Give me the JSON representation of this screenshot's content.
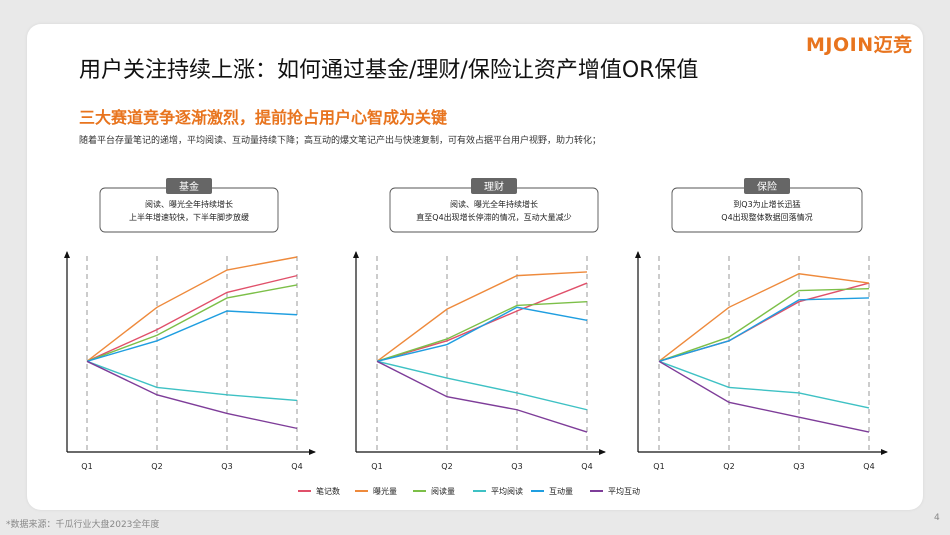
{
  "page": {
    "title": "用户关注持续上涨：如何通过基金/理财/保险让资产增值OR保值",
    "logo": "MJOIN迈竞",
    "subtitle": "三大赛道竞争逐渐激烈，提前抢占用户心智成为关键",
    "description": "随着平台存量笔记的递增，平均阅读、互动量持续下降；高互动的爆文笔记产出与快速复制，可有效占据平台用户视野，助力转化；",
    "footnote": "*数据来源：千瓜行业大盘2023全年度",
    "page_number": "4"
  },
  "legend": [
    {
      "name": "笔记数",
      "color": "#e0506a"
    },
    {
      "name": "曝光量",
      "color": "#ee8a3c"
    },
    {
      "name": "阅读量",
      "color": "#7cbf48"
    },
    {
      "name": "平均阅读",
      "color": "#3ec1c4"
    },
    {
      "name": "互动量",
      "color": "#1f9ee0"
    },
    {
      "name": "平均互动",
      "color": "#7e3d99"
    }
  ],
  "chart_data": [
    {
      "type": "line",
      "tag": "基金",
      "note_line1": "阅读、曝光全年持续增长",
      "note_line2": "上半年增速较快，下半年脚步放缓",
      "categories": [
        "Q1",
        "Q2",
        "Q3",
        "Q4"
      ],
      "ylim": [
        0,
        100
      ],
      "series": [
        {
          "name": "笔记数",
          "values": [
            46,
            63,
            83,
            92
          ]
        },
        {
          "name": "曝光量",
          "values": [
            46,
            75,
            95,
            102
          ]
        },
        {
          "name": "阅读量",
          "values": [
            46,
            60,
            80,
            87
          ]
        },
        {
          "name": "平均阅读",
          "values": [
            46,
            32,
            28,
            25
          ]
        },
        {
          "name": "互动量",
          "values": [
            46,
            57,
            73,
            71
          ]
        },
        {
          "name": "平均互动",
          "values": [
            46,
            28,
            18,
            10
          ]
        }
      ]
    },
    {
      "type": "line",
      "tag": "理财",
      "note_line1": "阅读、曝光全年持续增长",
      "note_line2": "直至Q4出现增长停滞的情况，互动大量减少",
      "categories": [
        "Q1",
        "Q2",
        "Q3",
        "Q4"
      ],
      "ylim": [
        0,
        100
      ],
      "series": [
        {
          "name": "笔记数",
          "values": [
            46,
            57,
            73,
            88
          ]
        },
        {
          "name": "曝光量",
          "values": [
            46,
            74,
            92,
            94
          ]
        },
        {
          "name": "阅读量",
          "values": [
            46,
            58,
            76,
            78
          ]
        },
        {
          "name": "平均阅读",
          "values": [
            46,
            37,
            29,
            20
          ]
        },
        {
          "name": "互动量",
          "values": [
            46,
            55,
            75,
            68
          ]
        },
        {
          "name": "平均互动",
          "values": [
            46,
            27,
            20,
            8
          ]
        }
      ]
    },
    {
      "type": "line",
      "tag": "保险",
      "note_line1": "到Q3为止增长迅猛",
      "note_line2": "Q4出现整体数据回落情况",
      "categories": [
        "Q1",
        "Q2",
        "Q3",
        "Q4"
      ],
      "ylim": [
        0,
        100
      ],
      "series": [
        {
          "name": "笔记数",
          "values": [
            46,
            57,
            78,
            88
          ]
        },
        {
          "name": "曝光量",
          "values": [
            46,
            75,
            93,
            88
          ]
        },
        {
          "name": "阅读量",
          "values": [
            46,
            59,
            84,
            85
          ]
        },
        {
          "name": "平均阅读",
          "values": [
            46,
            32,
            29,
            21
          ]
        },
        {
          "name": "互动量",
          "values": [
            46,
            57,
            79,
            80
          ]
        },
        {
          "name": "平均互动",
          "values": [
            46,
            24,
            16,
            8
          ]
        }
      ]
    }
  ]
}
